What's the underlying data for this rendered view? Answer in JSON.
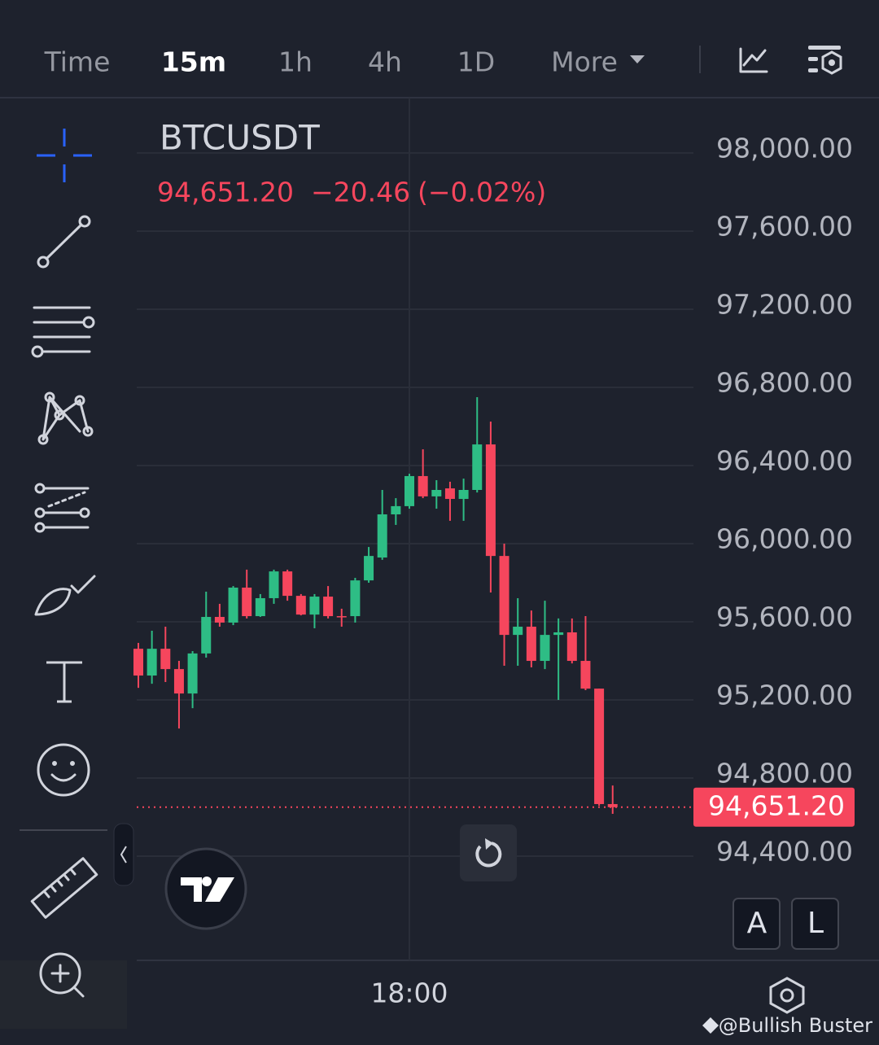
{
  "toolbar": {
    "intervals": [
      "Time",
      "15m",
      "1h",
      "4h",
      "1D",
      "More"
    ],
    "active": 1
  },
  "chart_data": {
    "type": "candlestick",
    "title": "BTCUSDT",
    "last_price": {
      "value": 94651.2,
      "label": "94,651.20"
    },
    "change": "−20.46",
    "change_pct": "(−0.02%)",
    "up_color": "#2ebd85",
    "down_color": "#f6465d",
    "categories": [
      null,
      null,
      null,
      null,
      null,
      null,
      null,
      null,
      null,
      null,
      null,
      null,
      null,
      null,
      null,
      null,
      null,
      null,
      null,
      null,
      "18:00",
      null,
      null,
      null,
      null,
      null,
      null,
      null,
      null,
      null,
      null,
      null,
      null,
      null,
      null,
      null
    ],
    "open": [
      95462,
      95325,
      95462,
      95358,
      95233,
      95438,
      95625,
      95596,
      95775,
      95629,
      95721,
      95858,
      95733,
      95637,
      95729,
      95629,
      95629,
      95812,
      95929,
      96150,
      96192,
      96346,
      96242,
      96283,
      96229,
      96275,
      96508,
      95937,
      95533,
      95575,
      95400,
      95533,
      95546,
      95400,
      95258,
      94667
    ],
    "high": [
      95492,
      95554,
      95575,
      95400,
      95450,
      95754,
      95692,
      95783,
      95867,
      95742,
      95867,
      95867,
      95742,
      95742,
      95783,
      95667,
      95825,
      95983,
      96275,
      96233,
      96358,
      96483,
      96325,
      96317,
      96333,
      96750,
      96625,
      96000,
      95721,
      95658,
      95708,
      95617,
      95617,
      95629,
      95258,
      94762
    ],
    "low": [
      95262,
      95283,
      95292,
      95054,
      95158,
      95417,
      95575,
      95583,
      95617,
      95625,
      95692,
      95708,
      95633,
      95567,
      95617,
      95575,
      95596,
      95800,
      95917,
      96096,
      96179,
      96233,
      96179,
      96117,
      96117,
      96262,
      95750,
      95375,
      95375,
      95367,
      95358,
      95200,
      95387,
      95250,
      94658,
      94617
    ],
    "close": [
      95325,
      95462,
      95358,
      95233,
      95438,
      95625,
      95596,
      95775,
      95629,
      95721,
      95858,
      95733,
      95637,
      95729,
      95629,
      95625,
      95812,
      95937,
      96150,
      96192,
      96346,
      96242,
      96275,
      96229,
      96275,
      96508,
      95937,
      95533,
      95575,
      95400,
      95533,
      95546,
      95400,
      95258,
      94667,
      94651.2
    ],
    "ylim": [
      93867,
      98283
    ],
    "yticks": [
      {
        "value": 94400,
        "label": "94,400.00"
      },
      {
        "value": 94800,
        "label": "94,800.00"
      },
      {
        "value": 95200,
        "label": "95,200.00"
      },
      {
        "value": 95600,
        "label": "95,600.00"
      },
      {
        "value": 96000,
        "label": "96,000.00"
      },
      {
        "value": 96400,
        "label": "96,400.00"
      },
      {
        "value": 96800,
        "label": "96,800.00"
      },
      {
        "value": 97200,
        "label": "97,200.00"
      },
      {
        "value": 97600,
        "label": "97,600.00"
      },
      {
        "value": 98000,
        "label": "98,000.00"
      }
    ],
    "grid": true
  },
  "scale_buttons": [
    "A",
    "L"
  ],
  "watermark": "@Bullish Buster"
}
